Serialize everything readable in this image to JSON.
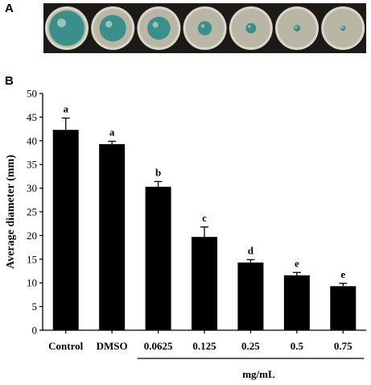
{
  "panels": {
    "a": "A",
    "b": "B"
  },
  "photo": {
    "description": "Seven petri dishes showing fungal colony growth decreasing left to right"
  },
  "colors": {
    "bar": "#000000",
    "dish_rim": "#d9d6cc",
    "agar": "#b9b6a5",
    "colony": "#2e8a86",
    "background_strip": "#1c1a17"
  },
  "chart_data": {
    "type": "bar",
    "categories": [
      "Control",
      "DMSO",
      "0.0625",
      "0.125",
      "0.25",
      "0.5",
      "0.75"
    ],
    "values": [
      42.3,
      39.3,
      30.3,
      19.7,
      14.3,
      11.6,
      9.3
    ],
    "errors": [
      2.5,
      0.6,
      1.1,
      2.1,
      0.6,
      0.6,
      0.6
    ],
    "significance": [
      "a",
      "a",
      "b",
      "c",
      "d",
      "e",
      "e"
    ],
    "ylabel": "Average diameter (mm)",
    "ylim": [
      0,
      50
    ],
    "yticks": [
      0,
      5,
      10,
      15,
      20,
      25,
      30,
      35,
      40,
      45,
      50
    ],
    "unit_group": {
      "label": "mg/mL",
      "from_index": 2,
      "to_index": 6
    },
    "grid": false,
    "legend": "none"
  }
}
